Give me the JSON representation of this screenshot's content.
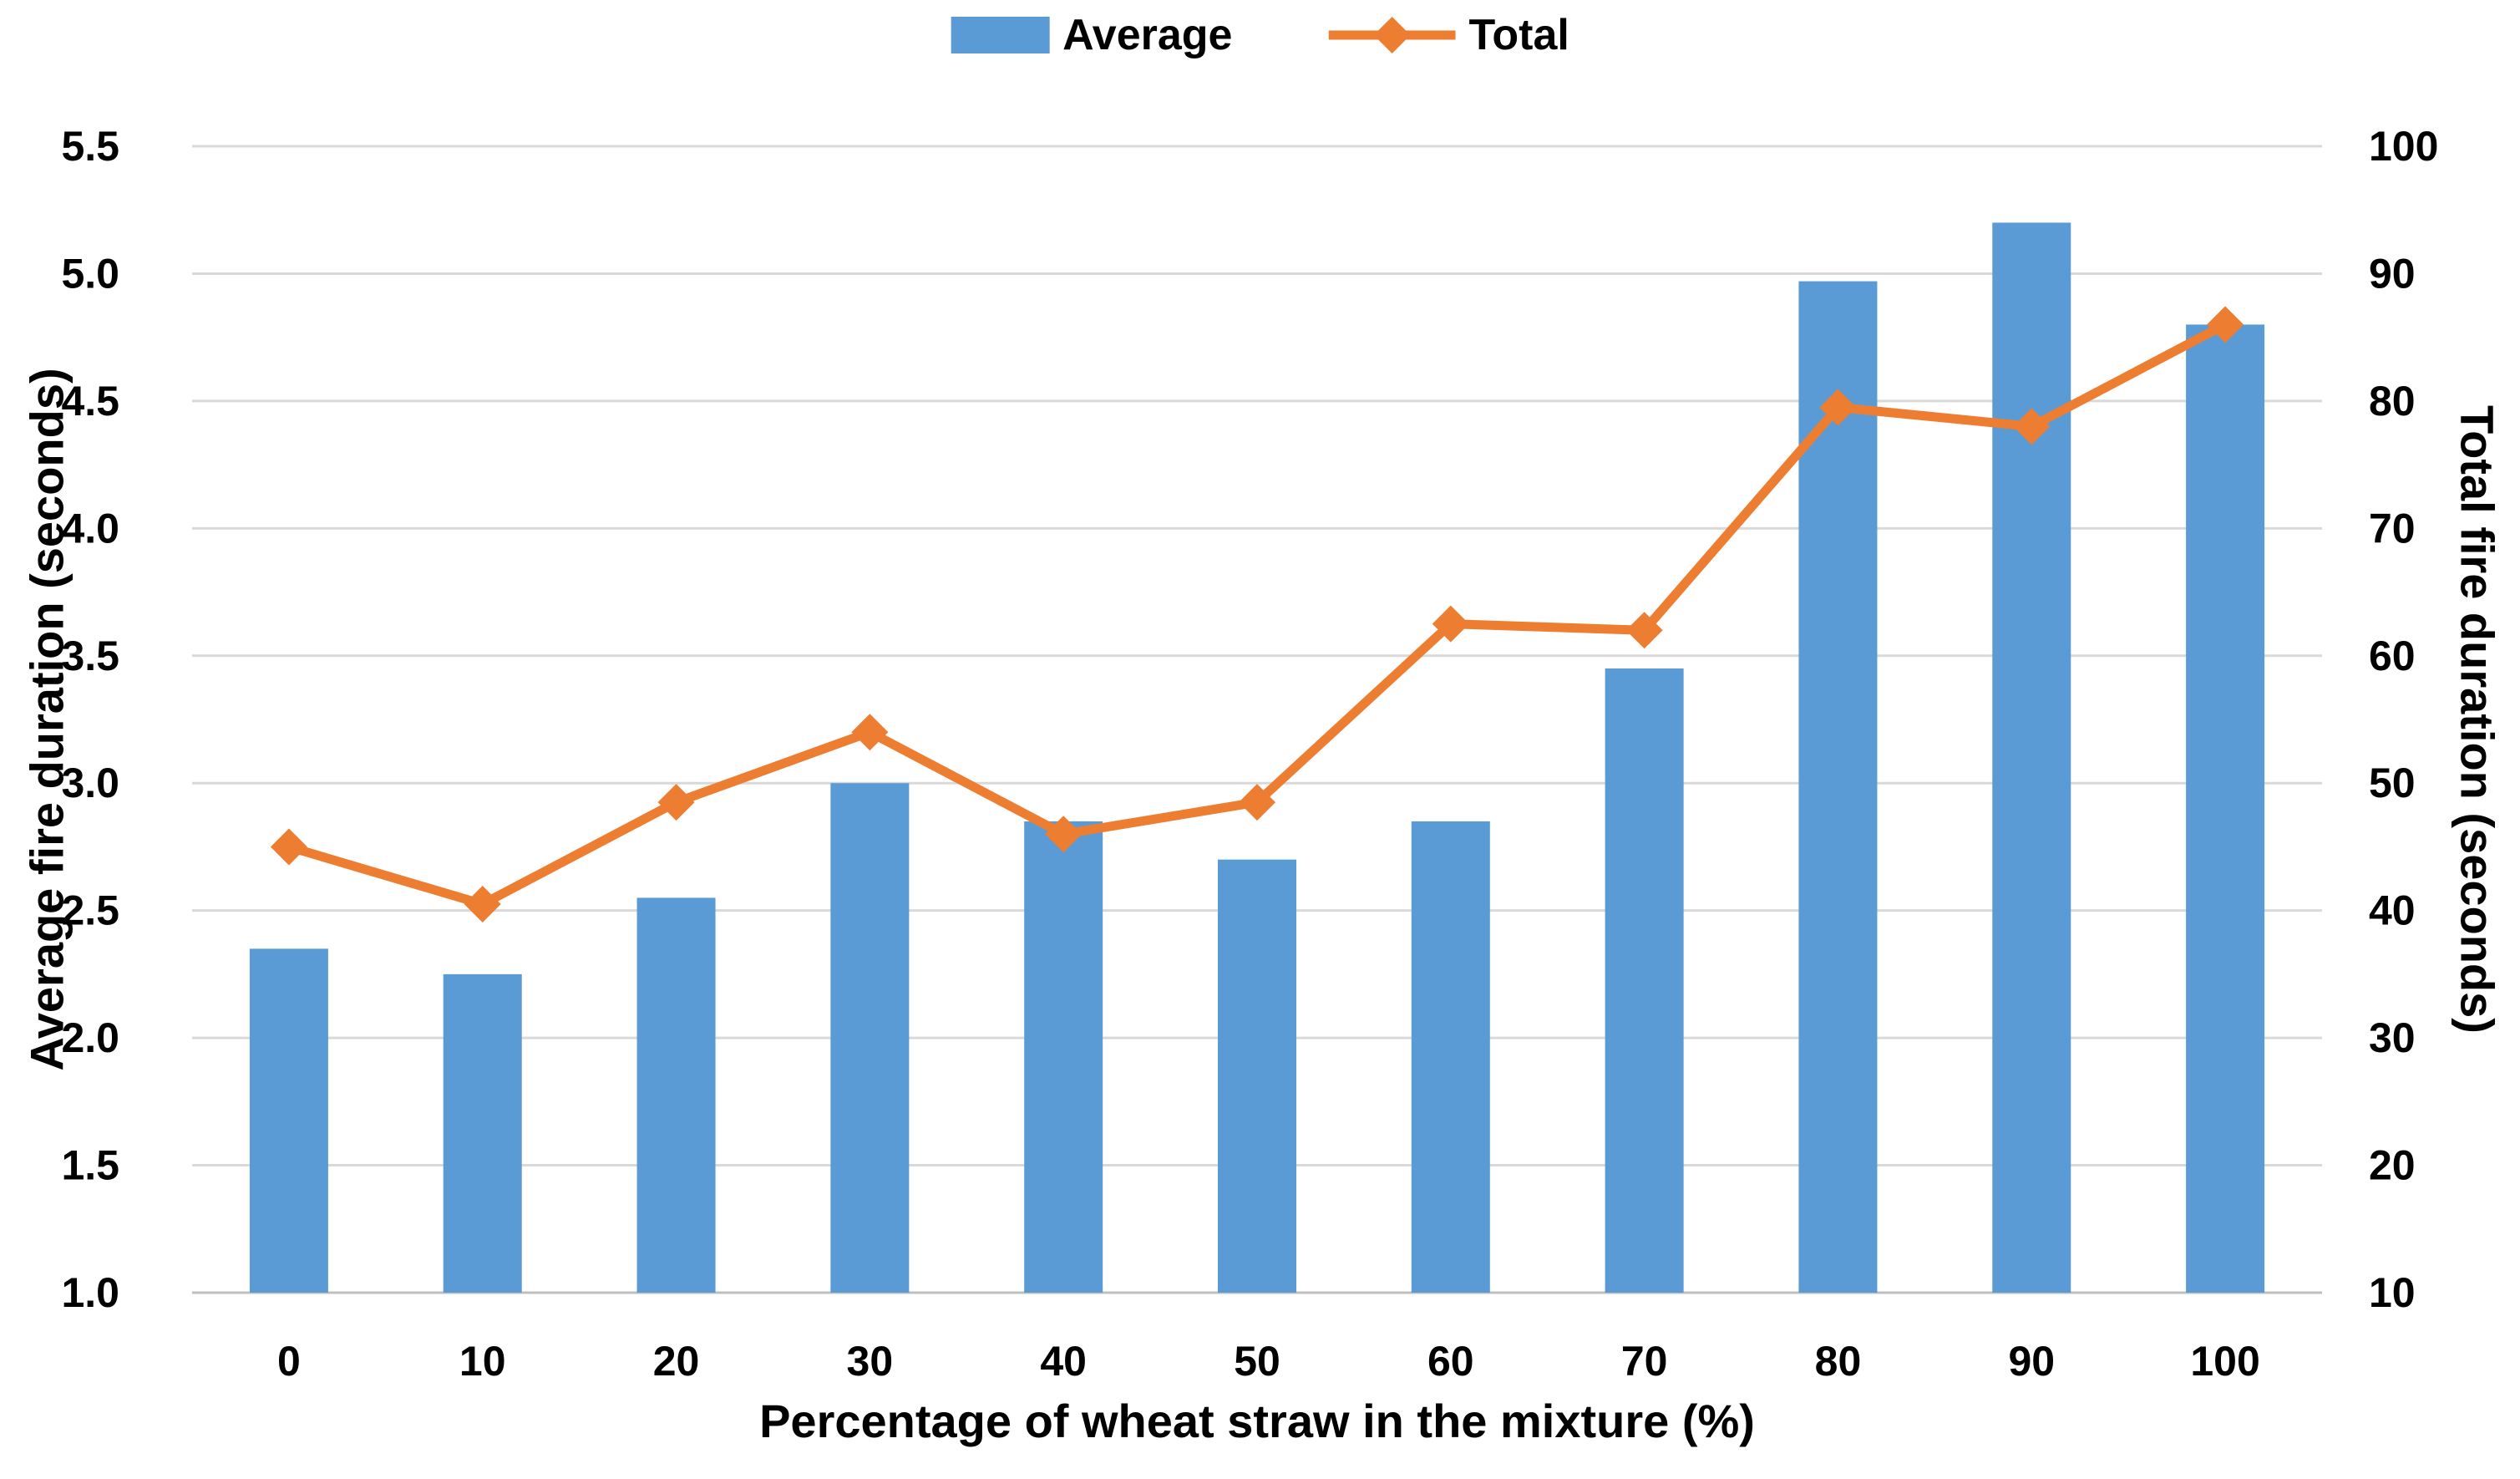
{
  "chart_data": {
    "type": "combo",
    "title": "",
    "categories": [
      "0",
      "10",
      "20",
      "30",
      "40",
      "50",
      "60",
      "70",
      "80",
      "90",
      "100"
    ],
    "series": [
      {
        "name": "Average",
        "type": "bar",
        "axis": "left",
        "color": "#5B9BD5",
        "values": [
          2.35,
          2.25,
          2.55,
          3.0,
          2.85,
          2.7,
          2.85,
          3.45,
          4.97,
          5.2,
          4.8
        ]
      },
      {
        "name": "Total",
        "type": "line",
        "axis": "right",
        "color": "#ED7D31",
        "marker": "diamond",
        "values": [
          45,
          40.5,
          48.5,
          54,
          46,
          48.5,
          62.5,
          62,
          79.5,
          78,
          86
        ]
      }
    ],
    "left_axis": {
      "title": "Average fire duration (seconds)",
      "min": 1.0,
      "max": 5.5,
      "step": 0.5,
      "tick_labels": [
        "1.0",
        "1.5",
        "2.0",
        "2.5",
        "3.0",
        "3.5",
        "4.0",
        "4.5",
        "5.0",
        "5.5"
      ]
    },
    "right_axis": {
      "title": "Total fire duration (seconds)",
      "min": 10,
      "max": 100,
      "step": 10,
      "tick_labels": [
        "10",
        "20",
        "30",
        "40",
        "50",
        "60",
        "70",
        "80",
        "90",
        "100"
      ]
    },
    "x_axis": {
      "title": "Percentage of wheat straw in the mixture (%)"
    },
    "legend": {
      "position": "top",
      "entries": [
        {
          "label": "Average",
          "swatch": "bar",
          "color": "#5B9BD5"
        },
        {
          "label": "Total",
          "swatch": "line-diamond",
          "color": "#ED7D31"
        }
      ]
    },
    "grid": {
      "show": true,
      "color": "#D9D9D9",
      "axis_line_color": "#BFBFBF"
    }
  }
}
